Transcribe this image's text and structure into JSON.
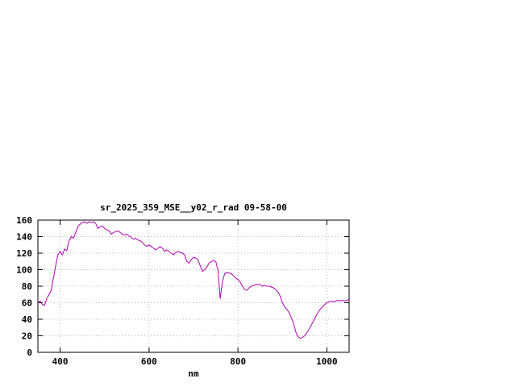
{
  "page": {
    "background": "#ffffff"
  },
  "chart_data": {
    "type": "line",
    "title": "sr_2025_359_MSE__y02_r_rad 09-58-00",
    "xlabel": "nm",
    "ylabel": "",
    "xlim": [
      350,
      1050
    ],
    "ylim": [
      0,
      160
    ],
    "xticks": [
      400,
      600,
      800,
      1000
    ],
    "yticks": [
      0,
      20,
      40,
      60,
      80,
      100,
      120,
      140,
      160
    ],
    "grid": true,
    "grid_color": "#b4b4b4",
    "border_color": "#000000",
    "line_color": "#b000b0",
    "legend": "none",
    "series": [
      {
        "name": "sr_2025_359_MSE__y02_r_rad",
        "x": [
          350,
          355,
          360,
          365,
          370,
          375,
          380,
          385,
          390,
          395,
          400,
          405,
          410,
          415,
          420,
          425,
          430,
          435,
          440,
          445,
          450,
          455,
          460,
          465,
          470,
          475,
          480,
          485,
          490,
          495,
          500,
          505,
          510,
          515,
          520,
          525,
          530,
          535,
          540,
          545,
          550,
          555,
          560,
          565,
          570,
          575,
          580,
          585,
          590,
          595,
          600,
          605,
          610,
          615,
          620,
          625,
          630,
          635,
          640,
          645,
          650,
          655,
          660,
          665,
          670,
          675,
          680,
          685,
          690,
          695,
          700,
          705,
          710,
          715,
          720,
          725,
          730,
          735,
          740,
          745,
          750,
          755,
          760,
          765,
          770,
          775,
          780,
          785,
          790,
          795,
          800,
          805,
          810,
          815,
          820,
          825,
          830,
          835,
          840,
          845,
          850,
          855,
          860,
          865,
          870,
          875,
          880,
          885,
          890,
          895,
          900,
          905,
          910,
          915,
          920,
          925,
          930,
          935,
          940,
          945,
          950,
          955,
          960,
          965,
          970,
          975,
          980,
          985,
          990,
          995,
          1000,
          1005,
          1010,
          1015,
          1020,
          1025,
          1030,
          1035,
          1040,
          1045,
          1050
        ],
        "y": [
          60,
          62,
          58,
          57,
          65,
          70,
          75,
          90,
          105,
          118,
          122,
          118,
          125,
          123,
          135,
          140,
          138,
          145,
          152,
          155,
          157,
          158,
          156,
          158,
          157,
          158,
          156,
          150,
          152,
          153,
          150,
          148,
          147,
          143,
          145,
          146,
          147,
          145,
          143,
          142,
          143,
          141,
          139,
          137,
          138,
          136,
          135,
          133,
          130,
          128,
          130,
          128,
          126,
          124,
          126,
          128,
          126,
          122,
          124,
          122,
          120,
          118,
          121,
          122,
          121,
          120,
          118,
          110,
          108,
          112,
          115,
          114,
          112,
          105,
          98,
          100,
          103,
          108,
          110,
          111,
          110,
          100,
          65,
          85,
          95,
          97,
          96,
          95,
          93,
          90,
          88,
          85,
          80,
          76,
          75,
          78,
          80,
          81,
          82,
          82,
          82,
          80,
          81,
          80,
          80,
          79,
          78,
          76,
          73,
          68,
          60,
          55,
          52,
          48,
          42,
          35,
          25,
          19,
          17,
          18,
          20,
          24,
          28,
          33,
          38,
          43,
          48,
          52,
          55,
          58,
          60,
          61,
          62,
          61,
          62,
          63,
          62,
          63,
          62,
          63,
          64
        ]
      }
    ]
  }
}
